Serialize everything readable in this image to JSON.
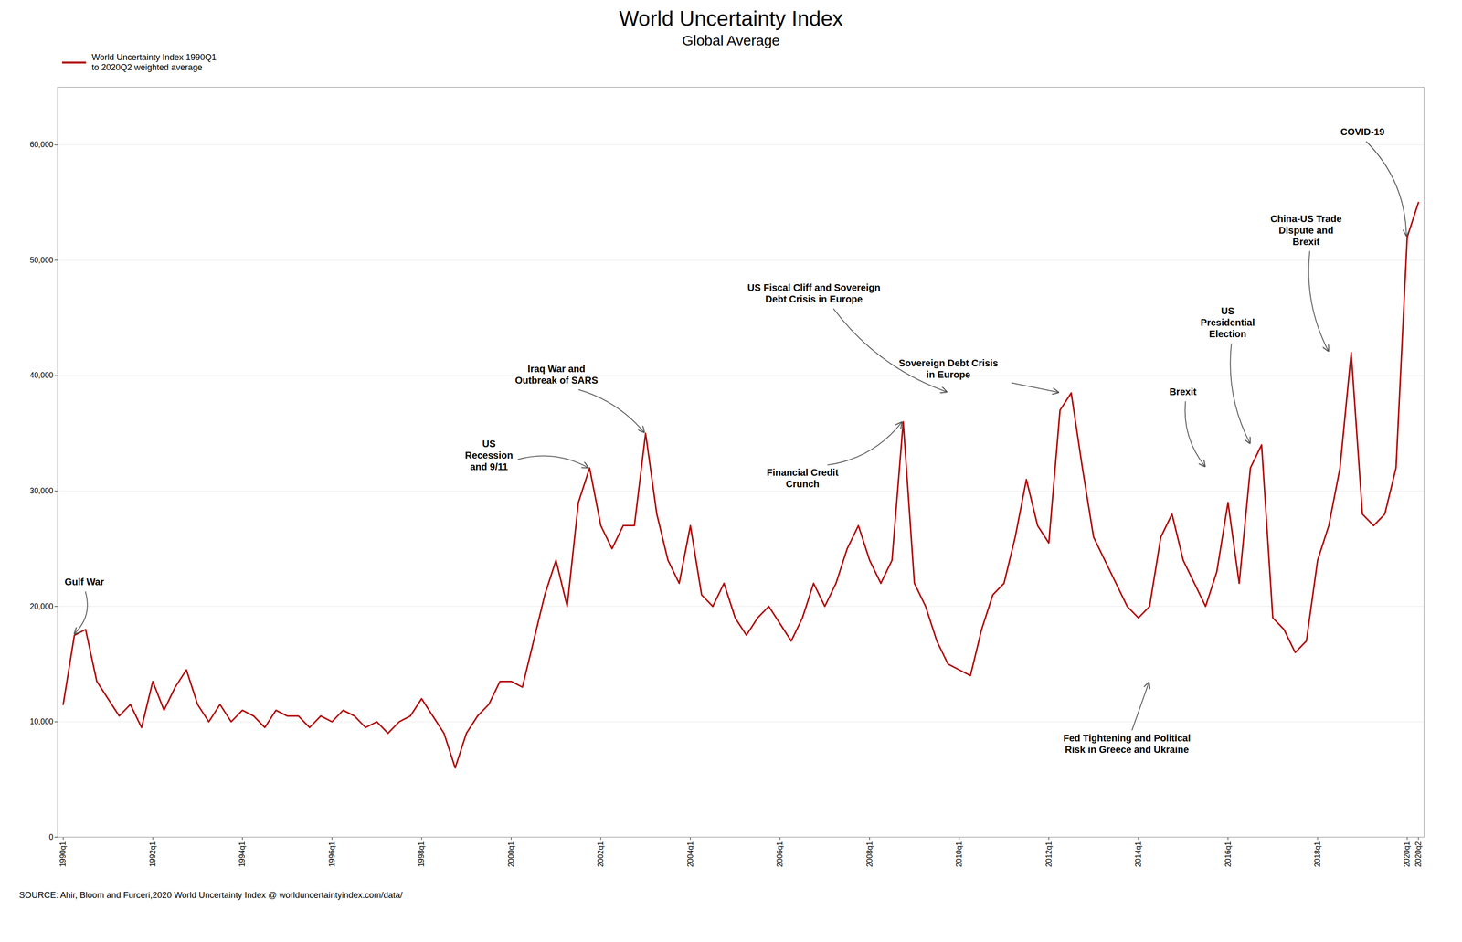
{
  "chart_data": {
    "type": "line",
    "title": "World Uncertainty Index",
    "subtitle": "Global Average",
    "source": "SOURCE: Ahir, Bloom and Furceri,2020 World Uncertainty Index @ worlduncertaintyindex.com/data/",
    "categories": [
      "1990q1",
      null,
      null,
      null,
      null,
      null,
      null,
      null,
      "1992q1",
      null,
      null,
      null,
      null,
      null,
      null,
      null,
      "1994q1",
      null,
      null,
      null,
      null,
      null,
      null,
      null,
      "1996q1",
      null,
      null,
      null,
      null,
      null,
      null,
      null,
      "1998q1",
      null,
      null,
      null,
      null,
      null,
      null,
      null,
      "2000q1",
      null,
      null,
      null,
      null,
      null,
      null,
      null,
      "2002q1",
      null,
      null,
      null,
      null,
      null,
      null,
      null,
      "2004q1",
      null,
      null,
      null,
      null,
      null,
      null,
      null,
      "2006q1",
      null,
      null,
      null,
      null,
      null,
      null,
      null,
      "2008q1",
      null,
      null,
      null,
      null,
      null,
      null,
      null,
      "2010q1",
      null,
      null,
      null,
      null,
      null,
      null,
      null,
      "2012q1",
      null,
      null,
      null,
      null,
      null,
      null,
      null,
      "2014q1",
      null,
      null,
      null,
      null,
      null,
      null,
      null,
      "2016q1",
      null,
      null,
      null,
      null,
      null,
      null,
      null,
      "2018q1",
      null,
      null,
      null,
      null,
      null,
      null,
      null,
      "2020q1",
      "2020q2"
    ],
    "series": [
      {
        "name": "World Uncertainty Index 1990Q1\nto 2020Q2 weighted average",
        "color": "#b30000",
        "values": [
          11500,
          17500,
          18000,
          13500,
          12000,
          10500,
          11500,
          9500,
          13500,
          11000,
          13000,
          14500,
          11500,
          10000,
          11500,
          10000,
          11000,
          10500,
          9500,
          11000,
          10500,
          10500,
          9500,
          10500,
          10000,
          11000,
          10500,
          9500,
          10000,
          9000,
          10000,
          10500,
          12000,
          10500,
          9000,
          6000,
          9000,
          10500,
          11500,
          13500,
          13500,
          13000,
          17000,
          21000,
          24000,
          20000,
          29000,
          32000,
          27000,
          25000,
          27000,
          27000,
          35000,
          28000,
          24000,
          22000,
          27000,
          21000,
          20000,
          22000,
          19000,
          17500,
          19000,
          20000,
          18500,
          17000,
          19000,
          22000,
          20000,
          22000,
          25000,
          27000,
          24000,
          22000,
          24000,
          36000,
          22000,
          20000,
          17000,
          15000,
          14500,
          14000,
          18000,
          21000,
          22000,
          26000,
          31000,
          27000,
          25500,
          37000,
          38500,
          32000,
          26000,
          24000,
          22000,
          20000,
          19000,
          20000,
          26000,
          28000,
          24000,
          22000,
          20000,
          23000,
          29000,
          22000,
          32000,
          34000,
          19000,
          18000,
          16000,
          17000,
          24000,
          27000,
          32000,
          42000,
          28000,
          27000,
          28000,
          32000,
          52000,
          55000
        ]
      }
    ],
    "ylim": [
      0,
      65000
    ],
    "yticks": [
      0,
      {
        "value": 10000,
        "label": "10,000"
      },
      {
        "value": 20000,
        "label": "20,000"
      },
      {
        "value": 30000,
        "label": "30,000"
      },
      {
        "value": 40000,
        "label": "40,000"
      },
      {
        "value": 50000,
        "label": "50,000"
      },
      {
        "value": 60000,
        "label": "60,000"
      }
    ],
    "grid": true,
    "legend": "upper left",
    "annotations": [
      {
        "text": "Gulf War",
        "x": 1,
        "y": 17500
      },
      {
        "text": "US\nRecession\nand 9/11",
        "x": 47,
        "y": 32000
      },
      {
        "text": "Iraq War and\nOutbreak of SARS",
        "x": 52,
        "y": 35000
      },
      {
        "text": "Financial Credit\nCrunch",
        "x": 75,
        "y": 36000
      },
      {
        "text": "US Fiscal Cliff and Sovereign\nDebt Crisis in Europe",
        "x": 79,
        "y": 38500
      },
      {
        "text": "Sovereign Debt Crisis\nin Europe",
        "x": 89,
        "y": 38500
      },
      {
        "text": "Fed Tightening and Political\nRisk in Greece and Ukraine",
        "x": 97,
        "y": 13500
      },
      {
        "text": "Brexit",
        "x": 102,
        "y": 32000
      },
      {
        "text": "US\nPresidential\nElection",
        "x": 106,
        "y": 34000
      },
      {
        "text": "China-US Trade\nDispute and\nBrexit",
        "x": 113,
        "y": 42000
      },
      {
        "text": "COVID-19",
        "x": 120,
        "y": 52000
      }
    ]
  }
}
